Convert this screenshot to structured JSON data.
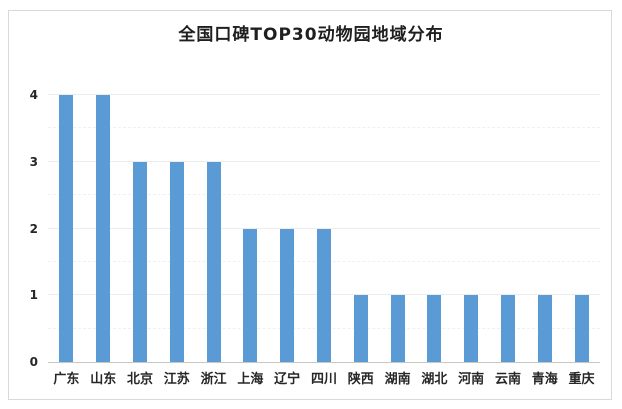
{
  "title": "全国口碑TOP30动物园地域分布",
  "colors": {
    "bar": "#5B9BD5",
    "title_text": "#1f1f1f",
    "axis_text": "#262626",
    "gridline": "#ececec",
    "axis_line": "#c6c6c6",
    "frame_border": "#d9d9d9",
    "background": "#ffffff"
  },
  "chart_data": {
    "type": "bar",
    "title": "全国口碑TOP30动物园地域分布",
    "categories": [
      "广东",
      "山东",
      "北京",
      "江苏",
      "浙江",
      "上海",
      "辽宁",
      "四川",
      "陕西",
      "湖南",
      "湖北",
      "河南",
      "云南",
      "青海",
      "重庆"
    ],
    "values": [
      4,
      4,
      3,
      3,
      3,
      2,
      2,
      2,
      1,
      1,
      1,
      1,
      1,
      1,
      1
    ],
    "xlabel": "",
    "ylabel": "",
    "ylim": [
      0,
      4
    ],
    "yticks": [
      0,
      1,
      2,
      3,
      4
    ],
    "gridline_step": 0.5,
    "grid": true,
    "legend": false,
    "bar_color": "#5B9BD5"
  }
}
